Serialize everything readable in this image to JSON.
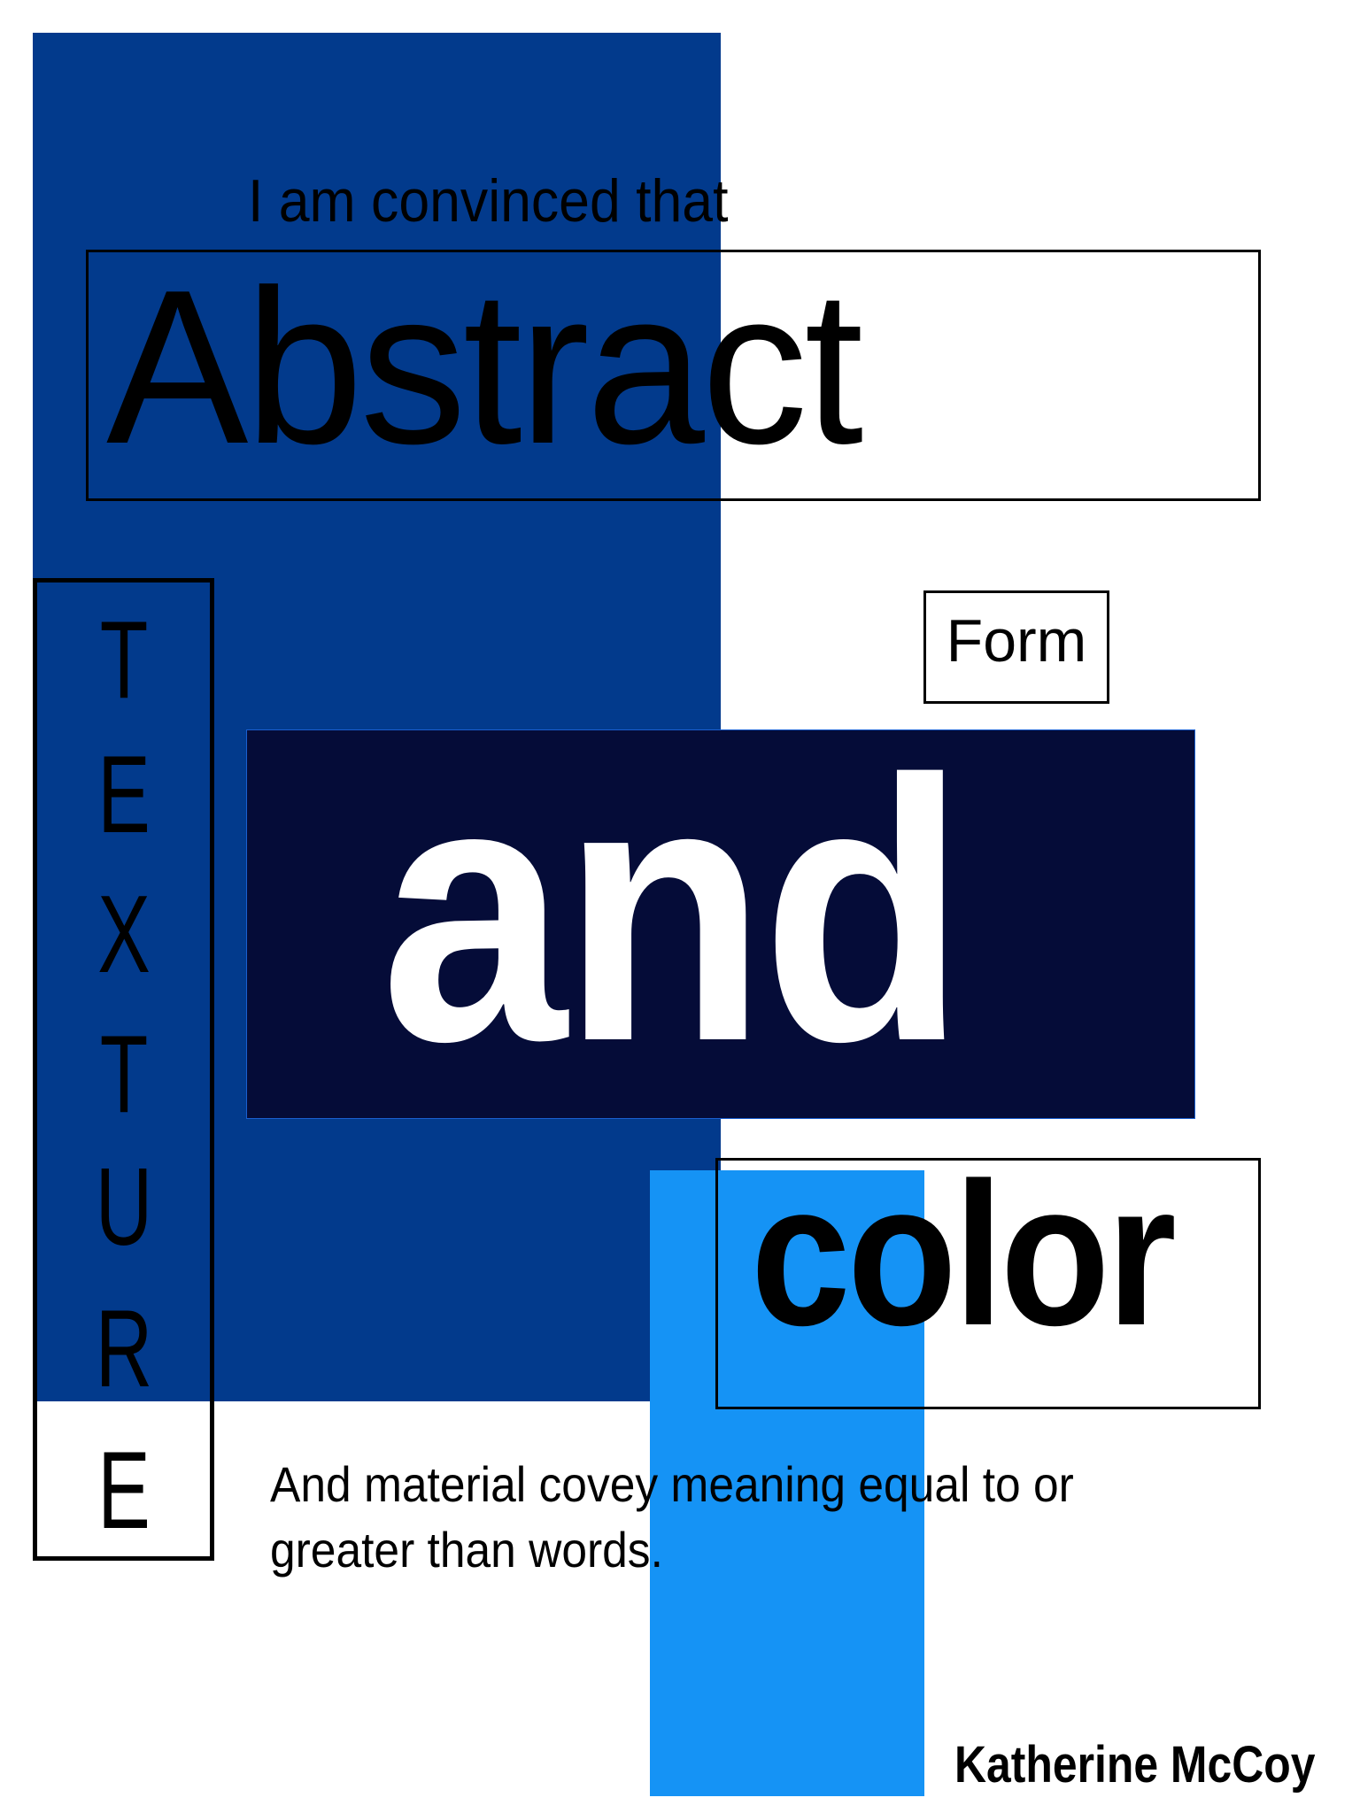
{
  "intro": "I am convinced that",
  "headline": "Abstract",
  "texture_letters": [
    "T",
    "E",
    "X",
    "T",
    "U",
    "R",
    "E"
  ],
  "form": "Form",
  "and": "and",
  "color": "color",
  "body": {
    "line1": "And material covey meaning equal to or",
    "line2": "greater than words."
  },
  "author": "Katherine McCoy",
  "colors": {
    "royal_blue": "#023a8c",
    "navy": "#050c38",
    "sky_blue": "#1593f5",
    "white": "#ffffff",
    "black": "#000000"
  }
}
